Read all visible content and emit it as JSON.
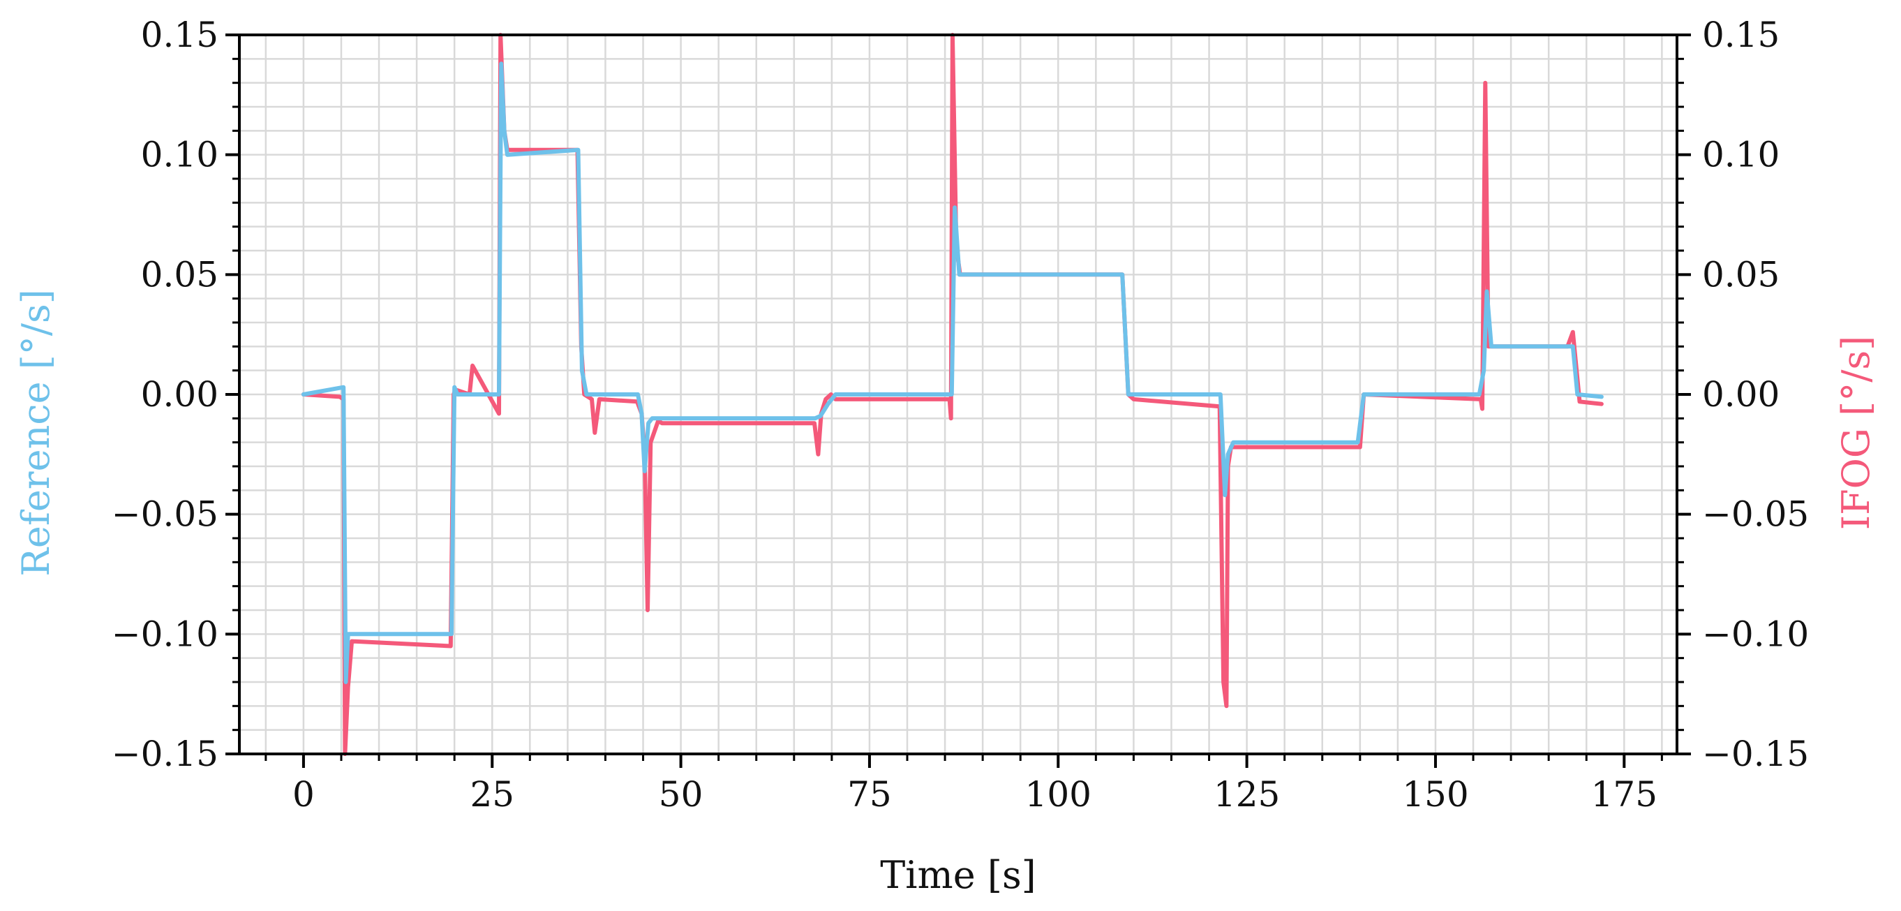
{
  "chart_data": {
    "type": "line",
    "xlabel": "Time [s]",
    "ylabel_left": "Reference [°/s]",
    "ylabel_right": "IFOG [°/s]",
    "xlim": [
      -8.5,
      182
    ],
    "ylim": [
      -0.15,
      0.15
    ],
    "x_ticks": [
      0,
      25,
      50,
      75,
      100,
      125,
      150,
      175
    ],
    "x_tick_labels": [
      "0",
      "25",
      "50",
      "75",
      "100",
      "125",
      "150",
      "175"
    ],
    "y_ticks": [
      -0.15,
      -0.1,
      -0.05,
      0.0,
      0.05,
      0.1,
      0.15
    ],
    "y_tick_labels": [
      "−0.15",
      "−0.10",
      "−0.05",
      "0.00",
      "0.05",
      "0.10",
      "0.15"
    ],
    "y_minor_step": 0.01,
    "x_minor_step": 5,
    "grid": true,
    "colors": {
      "reference": "#6ec1ea",
      "ifog": "#f4597a",
      "grid": "#d9d9d9",
      "axis": "#000000"
    },
    "series": [
      {
        "key": "ifog",
        "x": [
          0,
          4.8,
          5.3,
          5.5,
          5.9,
          6.4,
          19.5,
          19.9,
          20.1,
          22.0,
          22.4,
          25.9,
          26.1,
          26.6,
          27.0,
          36.3,
          36.8,
          37.2,
          38.2,
          38.6,
          39.2,
          44.2,
          44.8,
          45.2,
          45.6,
          46.0,
          47.0,
          47.5,
          67.7,
          68.2,
          68.6,
          69.2,
          69.9,
          70.5,
          85.6,
          85.8,
          86.0,
          86.5,
          87.0,
          108.5,
          109.3,
          110.0,
          121.4,
          121.9,
          122.3,
          122.5,
          122.9,
          124.0,
          140.0,
          140.5,
          156.0,
          156.2,
          156.6,
          157.0,
          167.5,
          168.2,
          169.1,
          172.0
        ],
        "y": [
          0.0,
          -0.001,
          -0.002,
          -0.15,
          -0.122,
          -0.103,
          -0.105,
          0.0,
          0.002,
          0.0,
          0.012,
          -0.008,
          0.15,
          0.11,
          0.102,
          0.102,
          0.02,
          0.0,
          -0.002,
          -0.016,
          -0.002,
          -0.003,
          -0.008,
          -0.025,
          -0.09,
          -0.02,
          -0.011,
          -0.012,
          -0.012,
          -0.025,
          -0.008,
          -0.002,
          0.0,
          -0.002,
          -0.002,
          -0.01,
          0.15,
          0.062,
          0.05,
          0.05,
          0.0,
          -0.002,
          -0.005,
          -0.12,
          -0.13,
          -0.03,
          -0.022,
          -0.022,
          -0.022,
          0.0,
          -0.002,
          -0.006,
          0.13,
          0.02,
          0.02,
          0.026,
          -0.003,
          -0.004
        ]
      },
      {
        "key": "reference",
        "x": [
          0,
          5.3,
          5.6,
          5.9,
          19.6,
          20.0,
          20.4,
          25.9,
          26.2,
          26.6,
          27.0,
          36.4,
          36.9,
          37.5,
          44.3,
          44.8,
          45.2,
          45.7,
          46.2,
          67.8,
          68.5,
          69.5,
          70.5,
          85.5,
          85.9,
          86.3,
          86.9,
          108.5,
          109.3,
          110.0,
          121.5,
          122.1,
          122.5,
          123.2,
          139.7,
          140.5,
          155.8,
          156.4,
          156.8,
          157.4,
          168.2,
          168.8,
          172.0
        ],
        "y": [
          0.0,
          0.003,
          -0.12,
          -0.1,
          -0.1,
          0.003,
          0.0,
          0.0,
          0.138,
          0.11,
          0.1,
          0.102,
          0.01,
          0.0,
          0.0,
          -0.008,
          -0.032,
          -0.012,
          -0.01,
          -0.01,
          -0.009,
          -0.004,
          0.0,
          0.0,
          0.0,
          0.078,
          0.05,
          0.05,
          0.0,
          0.0,
          0.0,
          -0.042,
          -0.025,
          -0.02,
          -0.02,
          0.0,
          0.0,
          0.01,
          0.043,
          0.02,
          0.02,
          0.0,
          -0.001
        ]
      }
    ]
  }
}
